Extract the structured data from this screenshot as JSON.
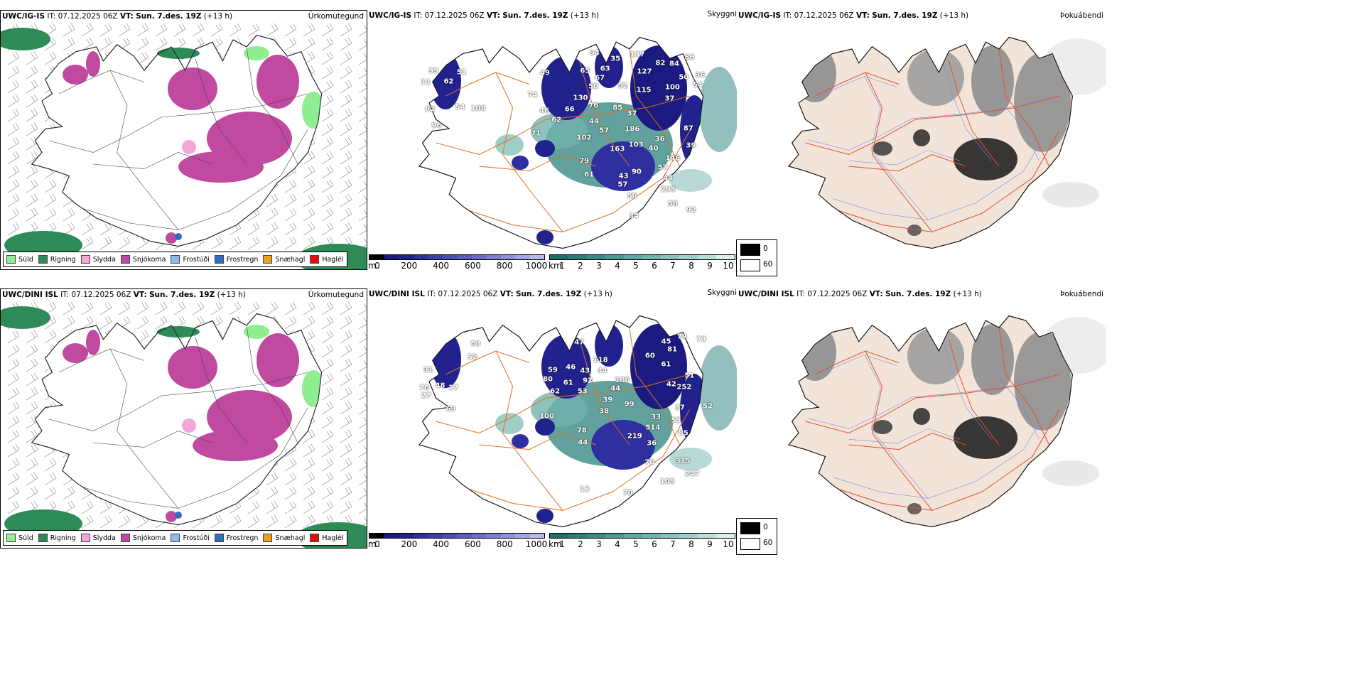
{
  "rows": [
    {
      "model": "UWC/IG-IS",
      "precip": {
        "model": "UWC/IG-IS",
        "it_label": "IT:",
        "it": "07.12.2025 06Z",
        "vt_label": "VT:",
        "vt": "Sun. 7.des. 19Z",
        "lead": "(+13 h)",
        "name": "Úrkomutegund"
      },
      "cloud": {
        "model": "UWC/IG-IS",
        "it_label": "IT:",
        "it": "07.12.2025 06Z",
        "vt_label": "VT:",
        "vt": "Sun. 7.des. 19Z",
        "lead": "(+13 h)",
        "name": "Skyggni"
      },
      "fog": {
        "model": "UWC/IG-IS",
        "it_label": "IT:",
        "it": "07.12.2025 06Z",
        "vt_label": "VT:",
        "vt": "Sun. 7.des. 19Z",
        "lead": "(+13 h)",
        "name": "Þokuábendi"
      },
      "cloud_base_labels": [
        "96",
        "51",
        "62",
        "108",
        "54",
        "99",
        "82",
        "11",
        "74",
        "57",
        "49",
        "46",
        "62",
        "71",
        "76",
        "63",
        "66",
        "67",
        "65",
        "130",
        "115",
        "44",
        "36",
        "58",
        "37",
        "50",
        "35",
        "94",
        "102",
        "137",
        "103",
        "87",
        "34",
        "40",
        "148",
        "163",
        "293",
        "57",
        "54",
        "100",
        "86",
        "84",
        "186",
        "79",
        "61",
        "36",
        "37",
        "52",
        "85",
        "50",
        "39",
        "57",
        "82",
        "90",
        "127",
        "43",
        "44",
        "56",
        "92"
      ]
    },
    {
      "model": "UWC/DINI ISL",
      "precip": {
        "model": "UWC/DINI ISL",
        "it_label": "IT:",
        "it": "07.12.2025 06Z",
        "vt_label": "VT:",
        "vt": "Sun. 7.des. 19Z",
        "lead": "(+13 h)",
        "name": "Úrkomutegund"
      },
      "cloud": {
        "model": "UWC/DINI ISL",
        "it_label": "IT:",
        "it": "07.12.2025 06Z",
        "vt_label": "VT:",
        "vt": "Sun. 7.des. 19Z",
        "lead": "(+13 h)",
        "name": "Skyggni"
      },
      "fog": {
        "model": "UWC/DINI ISL",
        "it_label": "IT:",
        "it": "07.12.2025 06Z",
        "vt_label": "VT:",
        "vt": "Sun. 7.des. 19Z",
        "lead": "(+13 h)",
        "name": "Þokuábendi"
      },
      "cloud_base_labels": [
        "31",
        "48",
        "69",
        "27",
        "76",
        "17",
        "63",
        "52",
        "46",
        "62",
        "53",
        "39",
        "43",
        "100",
        "38",
        "97",
        "47",
        "61",
        "59",
        "80",
        "42",
        "44",
        "44",
        "45",
        "70",
        "36",
        "37",
        "81",
        "79",
        "219",
        "78",
        "315",
        "252",
        "118",
        "186",
        "99",
        "85",
        "60",
        "61",
        "53",
        "70",
        "105",
        "247",
        "33",
        "73",
        "51",
        "52",
        "44",
        "13",
        "514"
      ]
    }
  ],
  "precip_legend": [
    {
      "label": "Súld",
      "color": "#90ee90"
    },
    {
      "label": "Rigning",
      "color": "#2e8b57"
    },
    {
      "label": "Slydda",
      "color": "#f4a6d7"
    },
    {
      "label": "Snjókoma",
      "color": "#c04aa0"
    },
    {
      "label": "Frostúði",
      "color": "#8fb8e8"
    },
    {
      "label": "Frostregn",
      "color": "#2f6fc0"
    },
    {
      "label": "Snæhagl",
      "color": "#f0a020"
    },
    {
      "label": "Haglél",
      "color": "#e01010"
    }
  ],
  "altitude_bar": {
    "unit": "m",
    "ticks": [
      "0",
      "200",
      "400",
      "600",
      "800",
      "1000"
    ],
    "colors": [
      "#000000",
      "#1a1a80",
      "#22228f",
      "#2f2fa0",
      "#3d3daa",
      "#4b4bb5",
      "#5b5bbe",
      "#6c6cc8",
      "#7e7ed0",
      "#9090d8",
      "#a3a3e0",
      "#b8b8e8"
    ]
  },
  "visibility_bar": {
    "unit": "km",
    "ticks": [
      "1",
      "2",
      "3",
      "4",
      "5",
      "6",
      "7",
      "8",
      "9",
      "10"
    ],
    "colors": [
      "#1f6e6a",
      "#2b7d78",
      "#3a8b86",
      "#4b9993",
      "#5ea6a0",
      "#72b3ad",
      "#88c0ba",
      "#a0cdc8",
      "#bcdcd8",
      "#dcedeb"
    ]
  },
  "fog_legend": {
    "dark_label": "0",
    "light_label": "60",
    "dark": "#000000",
    "light": "#ffffff"
  }
}
